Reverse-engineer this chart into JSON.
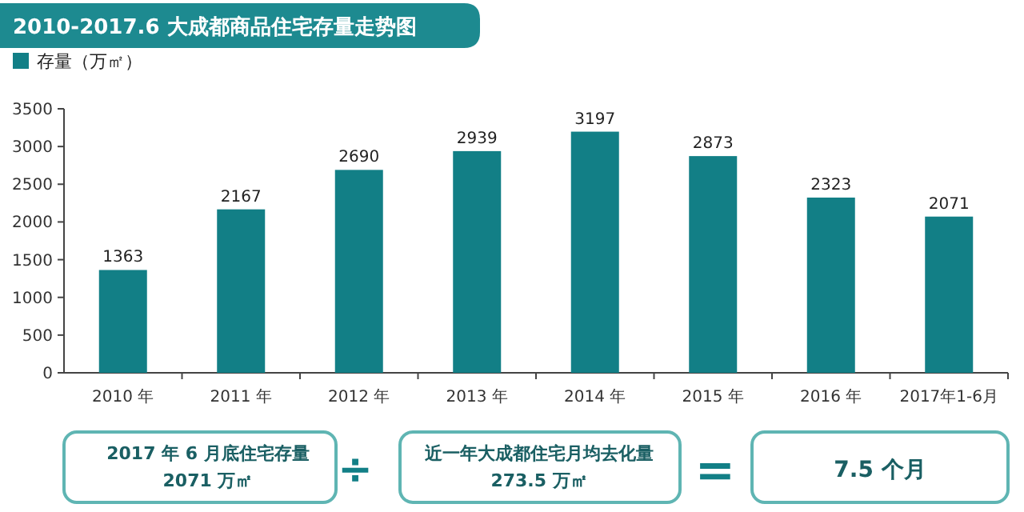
{
  "chart_data": {
    "type": "bar",
    "title": "2010-2017.6 大成都商品住宅存量走势图",
    "categories": [
      "2010 年",
      "2011 年",
      "2012 年",
      "2013 年",
      "2014 年",
      "2015 年",
      "2016  年",
      "2017年1-6月"
    ],
    "series": [
      {
        "name": "存量（万㎡）",
        "color": "#127f86",
        "values": [
          1363,
          2167,
          2690,
          2939,
          3197,
          2873,
          2323,
          2071
        ]
      }
    ],
    "ylim": [
      0,
      3500
    ],
    "yticks": [
      0,
      500,
      1000,
      1500,
      2000,
      2500,
      3000,
      3500
    ],
    "data_labels": true,
    "legend": "top left",
    "annotations": [
      "2017 年 6 月底住宅存量",
      "2071 万㎡",
      "÷",
      "近一年大成都住宅月均去化量",
      "273.5 万㎡",
      "=",
      "7.5 个月"
    ]
  }
}
